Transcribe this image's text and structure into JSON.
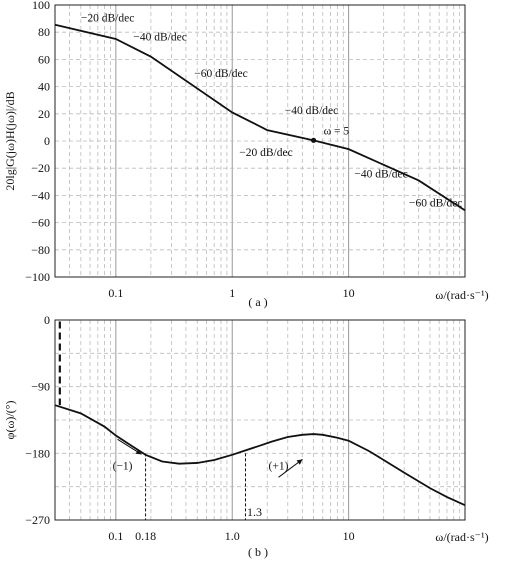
{
  "chart_data": [
    {
      "type": "line",
      "panel_label": "( a )",
      "xlabel": "ω/(rad·s⁻¹)",
      "ylabel": "20lg|G(jω)H(jω)|/dB",
      "xscale": "log",
      "xlim": [
        0.03,
        100
      ],
      "ylim": [
        -100,
        100
      ],
      "x_ticks": [
        {
          "value": 0.1,
          "label": "0.1"
        },
        {
          "value": 1,
          "label": "1"
        },
        {
          "value": 10,
          "label": "10"
        }
      ],
      "y_ticks": [
        {
          "value": 100,
          "label": "100"
        },
        {
          "value": 80,
          "label": "80"
        },
        {
          "value": 60,
          "label": "60"
        },
        {
          "value": 40,
          "label": "40"
        },
        {
          "value": 20,
          "label": "20"
        },
        {
          "value": 0,
          "label": "0"
        },
        {
          "value": -20,
          "label": "−20"
        },
        {
          "value": -40,
          "label": "−40"
        },
        {
          "value": -60,
          "label": "−60"
        },
        {
          "value": -80,
          "label": "−80"
        },
        {
          "value": -100,
          "label": "−100"
        }
      ],
      "grid": "dashed",
      "series": [
        {
          "x": [
            0.03,
            0.1,
            0.2,
            1,
            2,
            5,
            10,
            40,
            100
          ],
          "y": [
            85.5,
            75,
            62,
            21,
            8,
            0.5,
            -6,
            -29,
            -51
          ]
        }
      ],
      "point": {
        "x": 5,
        "y": 0.5,
        "label": "ω = 5"
      },
      "annotations": [
        {
          "text": "−20 dB/dec",
          "x": 0.085,
          "y": 88
        },
        {
          "text": "−40 dB/dec",
          "x": 0.24,
          "y": 74
        },
        {
          "text": "−60 dB/dec",
          "x": 0.8,
          "y": 47
        },
        {
          "text": "−40 dB/dec",
          "x": 4.8,
          "y": 20
        },
        {
          "text": "−20 dB/dec",
          "x": 1.95,
          "y": -11
        },
        {
          "text": "−40 dB/dec",
          "x": 19,
          "y": -27
        },
        {
          "text": "−60 dB/dec",
          "x": 56,
          "y": -48
        }
      ]
    },
    {
      "type": "line",
      "panel_label": "( b )",
      "xlabel": "ω/(rad·s⁻¹)",
      "ylabel": "φ(ω)/(°)",
      "xscale": "log",
      "xlim": [
        0.03,
        100
      ],
      "ylim": [
        -270,
        0
      ],
      "x_ticks": [
        {
          "value": 0.1,
          "label": "0.1"
        },
        {
          "value": 0.18,
          "label": "0.18"
        },
        {
          "value": 1,
          "label": "1.0"
        },
        {
          "value": 10,
          "label": "10"
        }
      ],
      "extra_label": {
        "value": 1.3,
        "label": "1.3"
      },
      "y_ticks": [
        {
          "value": 0,
          "label": "0"
        },
        {
          "value": -90,
          "label": "−90"
        },
        {
          "value": -180,
          "label": "−180"
        },
        {
          "value": -270,
          "label": "−270"
        }
      ],
      "minor_y": [
        -45,
        -135,
        -225
      ],
      "grid": "dashed",
      "series": [
        {
          "x": [
            0.03,
            0.05,
            0.08,
            0.1,
            0.14,
            0.18,
            0.25,
            0.35,
            0.5,
            0.7,
            1,
            1.3,
            1.7,
            2.2,
            3,
            4,
            5,
            6,
            8,
            10,
            15,
            20,
            30,
            50,
            70,
            100
          ],
          "y": [
            -115,
            -126,
            -144,
            -156,
            -171,
            -182,
            -191,
            -194,
            -193,
            -189,
            -182,
            -176,
            -170,
            -164,
            -158,
            -155,
            -154,
            -155,
            -159,
            -163,
            -177,
            -189,
            -206,
            -227,
            -239,
            -250
          ]
        }
      ],
      "vertical_marker": {
        "x": 0.033,
        "from": -2,
        "to": -115
      },
      "crossings": [
        {
          "x": 0.18,
          "label": "(−1)"
        },
        {
          "x": 1.3,
          "label": "(+1)"
        }
      ]
    }
  ]
}
